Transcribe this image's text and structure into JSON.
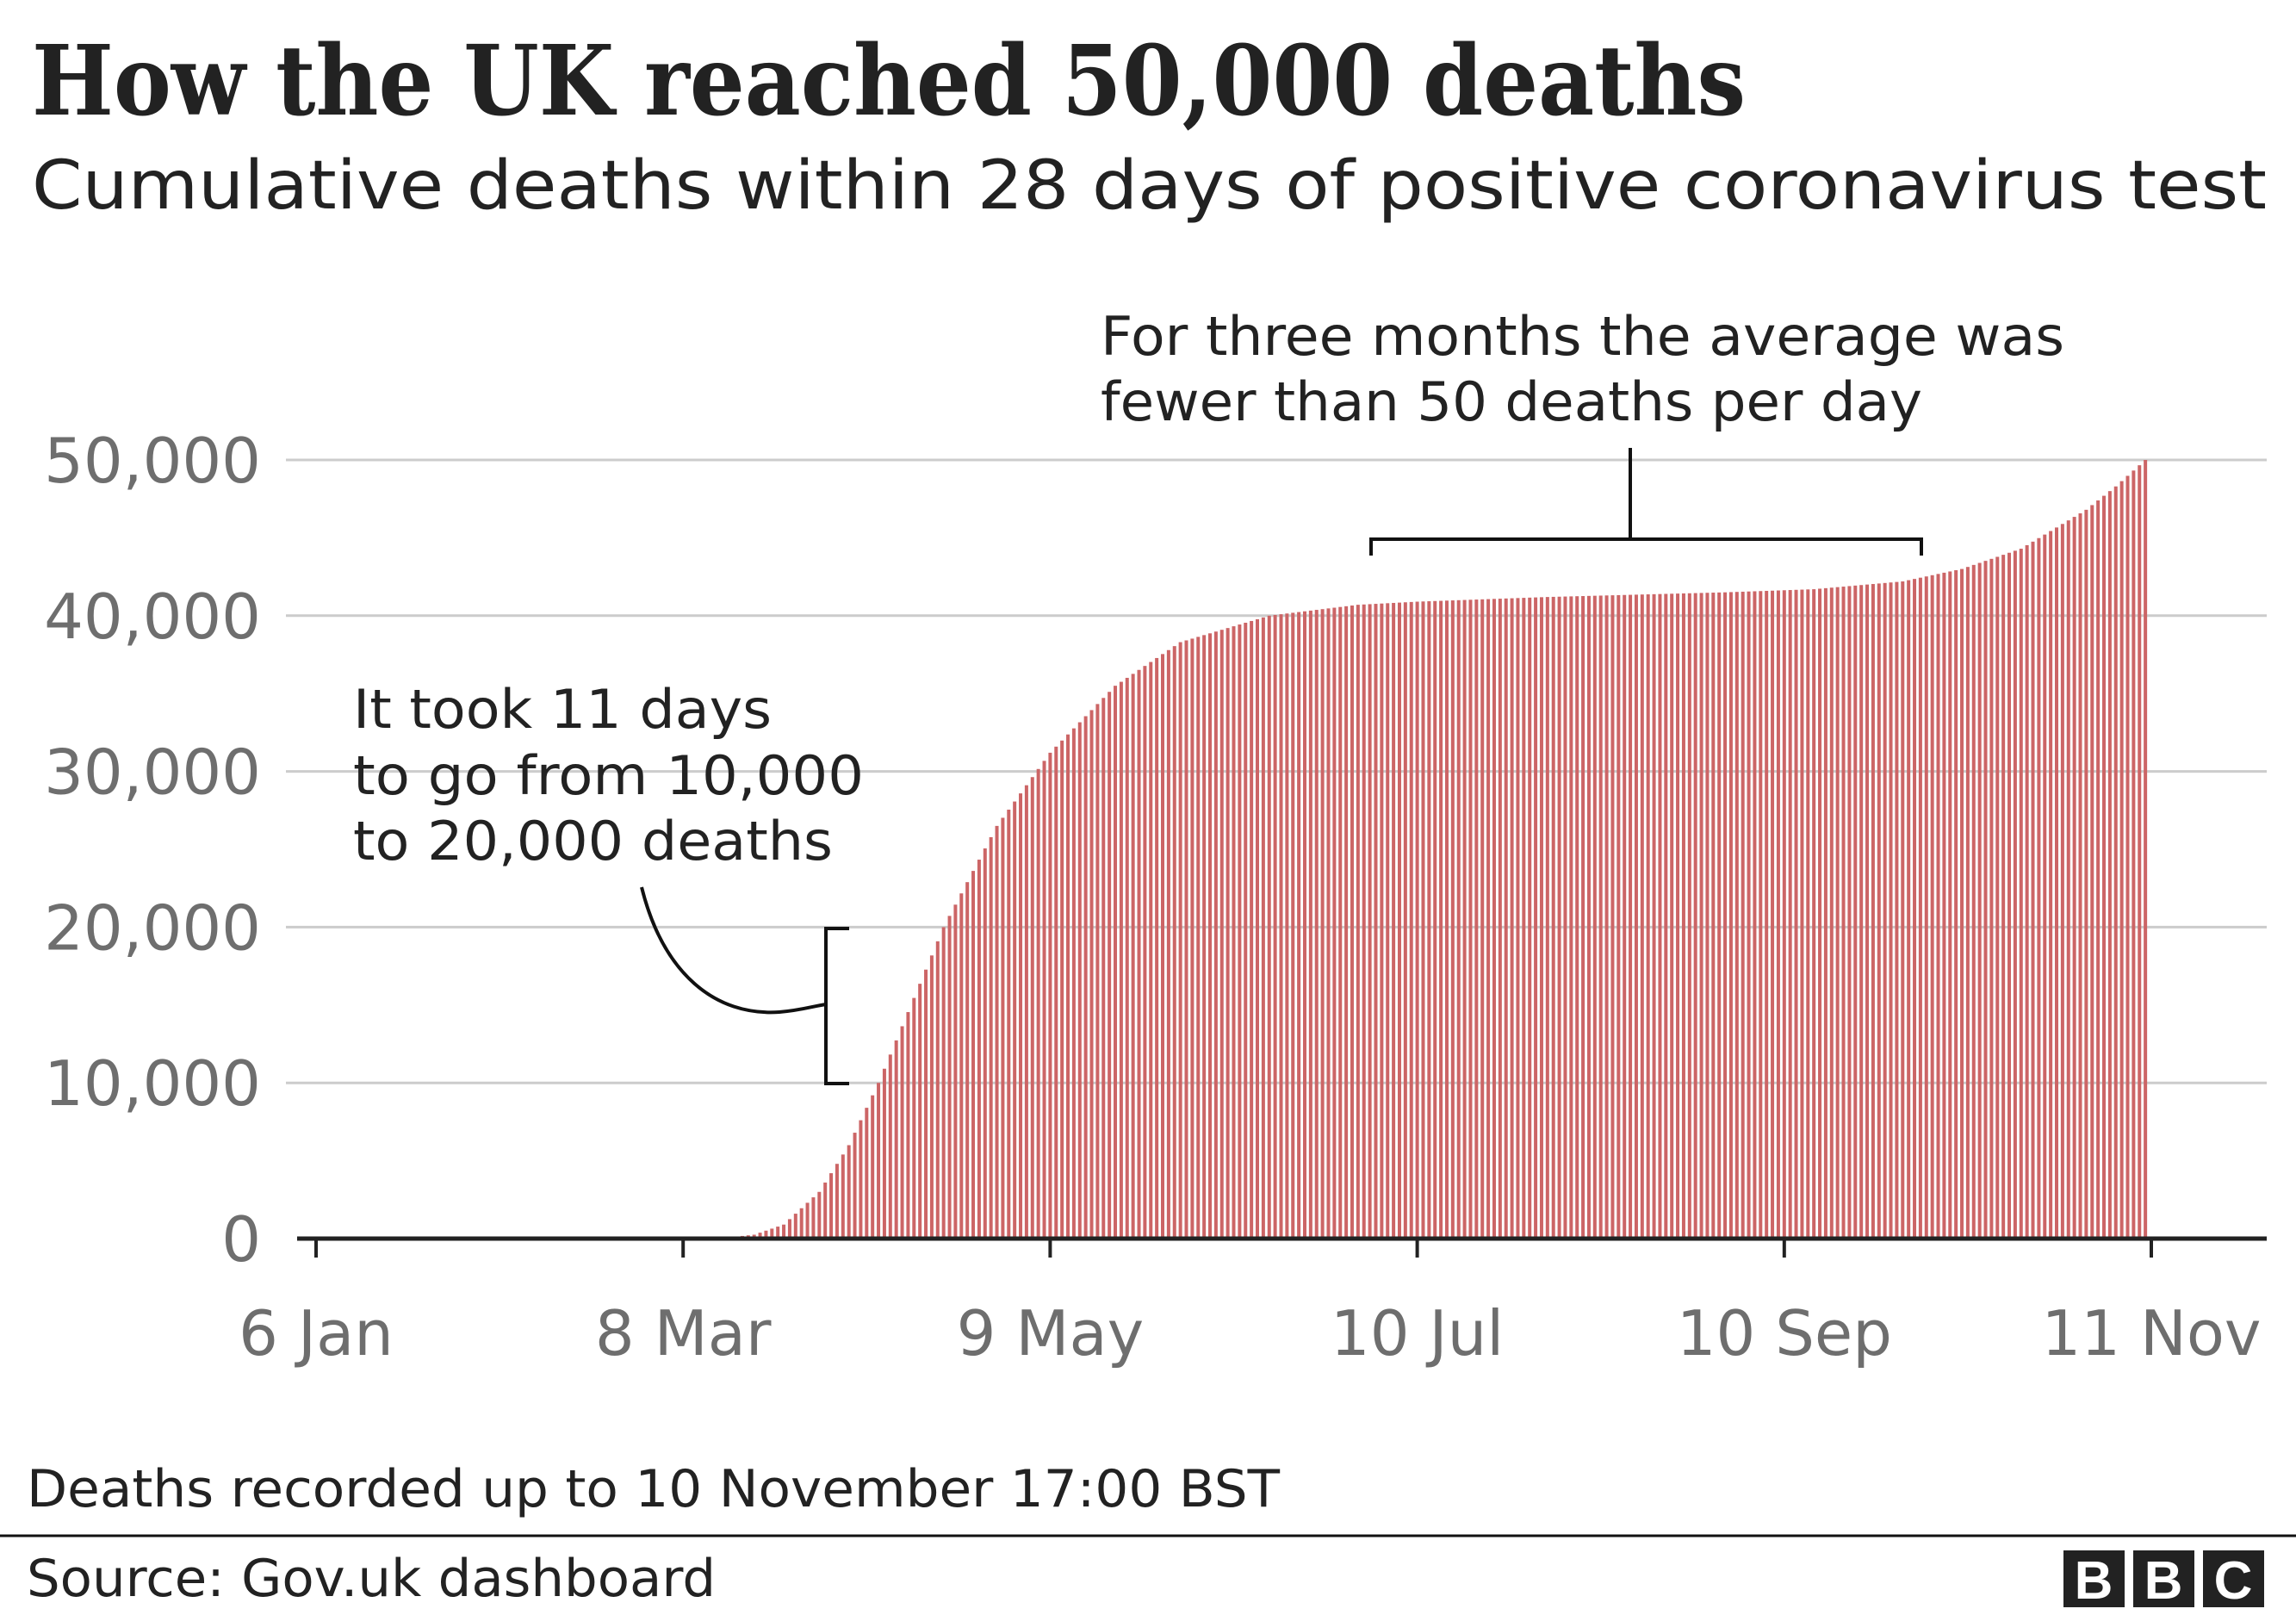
{
  "title": "How the UK reached 50,000 deaths",
  "subtitle": "Cumulative deaths within 28 days of positive coronavirus test",
  "footer": {
    "note": "Deaths recorded up to 10 November 17:00 BST",
    "source": "Source: Gov.uk dashboard",
    "logo": "BBC"
  },
  "colors": {
    "bar": "#cc6566",
    "grid": "#cccccc",
    "axis": "#222222",
    "tick_text": "#6e6e6e"
  },
  "chart_data": {
    "type": "bar",
    "title": "How the UK reached 50,000 deaths",
    "subtitle": "Cumulative deaths within 28 days of positive coronavirus test",
    "xlabel": "",
    "ylabel": "",
    "ylim": [
      0,
      50000
    ],
    "y_ticks": [
      {
        "value": 0,
        "label": "0"
      },
      {
        "value": 10000,
        "label": "10,000"
      },
      {
        "value": 20000,
        "label": "20,000"
      },
      {
        "value": 30000,
        "label": "30,000"
      },
      {
        "value": 40000,
        "label": "40,000"
      },
      {
        "value": 50000,
        "label": "50,000"
      }
    ],
    "x_ticks": [
      {
        "day": 0,
        "label": "6 Jan"
      },
      {
        "day": 62,
        "label": "8 Mar"
      },
      {
        "day": 124,
        "label": "9 May"
      },
      {
        "day": 186,
        "label": "10 Jul"
      },
      {
        "day": 248,
        "label": "10 Sep"
      },
      {
        "day": 310,
        "label": "11 Nov"
      }
    ],
    "x_unit": "days since 6 Jan 2020",
    "grid": true,
    "frequency": "daily, interpolated between anchor points",
    "anchors": [
      {
        "day": 55,
        "date": "1 Mar",
        "value": 0
      },
      {
        "day": 62,
        "date": "8 Mar",
        "value": 3
      },
      {
        "day": 69,
        "date": "15 Mar",
        "value": 50
      },
      {
        "day": 74,
        "date": "20 Mar",
        "value": 250
      },
      {
        "day": 79,
        "date": "25 Mar",
        "value": 900
      },
      {
        "day": 85,
        "date": "31 Mar",
        "value": 3000
      },
      {
        "day": 90,
        "date": "5 Apr",
        "value": 6000
      },
      {
        "day": 95,
        "date": "10 Apr",
        "value": 10000
      },
      {
        "day": 106,
        "date": "21 Apr",
        "value": 20000
      },
      {
        "day": 115,
        "date": "30 Apr",
        "value": 26500
      },
      {
        "day": 124,
        "date": "9 May",
        "value": 31200
      },
      {
        "day": 135,
        "date": "20 May",
        "value": 35500
      },
      {
        "day": 146,
        "date": "31 May",
        "value": 38300
      },
      {
        "day": 161,
        "date": "15 Jun",
        "value": 40000
      },
      {
        "day": 176,
        "date": "30 Jun",
        "value": 40700
      },
      {
        "day": 186,
        "date": "10 Jul",
        "value": 40900
      },
      {
        "day": 208,
        "date": "1 Aug",
        "value": 41200
      },
      {
        "day": 238,
        "date": "31 Aug",
        "value": 41500
      },
      {
        "day": 253,
        "date": "15 Sep",
        "value": 41700
      },
      {
        "day": 268,
        "date": "30 Sep",
        "value": 42200
      },
      {
        "day": 278,
        "date": "10 Oct",
        "value": 43000
      },
      {
        "day": 288,
        "date": "20 Oct",
        "value": 44300
      },
      {
        "day": 299,
        "date": "31 Oct",
        "value": 46800
      },
      {
        "day": 304,
        "date": "5 Nov",
        "value": 48300
      },
      {
        "day": 309,
        "date": "10 Nov",
        "value": 50000
      }
    ],
    "annotations": [
      {
        "lines": [
          "For three months the average was",
          "fewer than 50 deaths per day"
        ],
        "from_day": 176,
        "to_day": 268
      },
      {
        "lines": [
          "It took 11 days",
          "to go from 10,000",
          "to 20,000 deaths"
        ],
        "from_value": 10000,
        "to_value": 20000
      }
    ]
  }
}
